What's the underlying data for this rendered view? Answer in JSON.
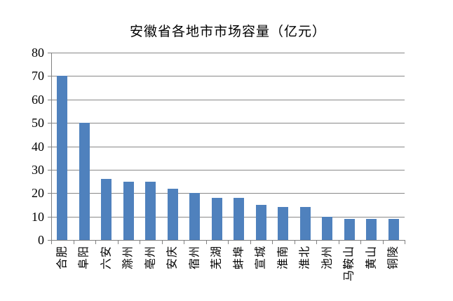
{
  "chart_data": {
    "type": "bar",
    "title": "安徽省各地市市场容量（亿元）",
    "categories": [
      "合肥",
      "阜阳",
      "六安",
      "滁州",
      "亳州",
      "安庆",
      "宿州",
      "芜湖",
      "蚌埠",
      "宣城",
      "淮南",
      "淮北",
      "池州",
      "马鞍山",
      "黄山",
      "铜陵"
    ],
    "values": [
      70,
      50,
      26,
      25,
      25,
      22,
      20,
      18,
      18,
      15,
      14,
      14,
      10,
      9,
      9,
      9
    ],
    "xlabel": "",
    "ylabel": "",
    "ylim": [
      0,
      80
    ],
    "yticks": [
      0,
      10,
      20,
      30,
      40,
      50,
      60,
      70,
      80
    ],
    "grid": true,
    "legend": false,
    "bar_color": "#4F81BD",
    "gridline_color": "#898989",
    "axis_color": "#808080",
    "text_color": "#000000",
    "background": "#FFFFFF"
  }
}
